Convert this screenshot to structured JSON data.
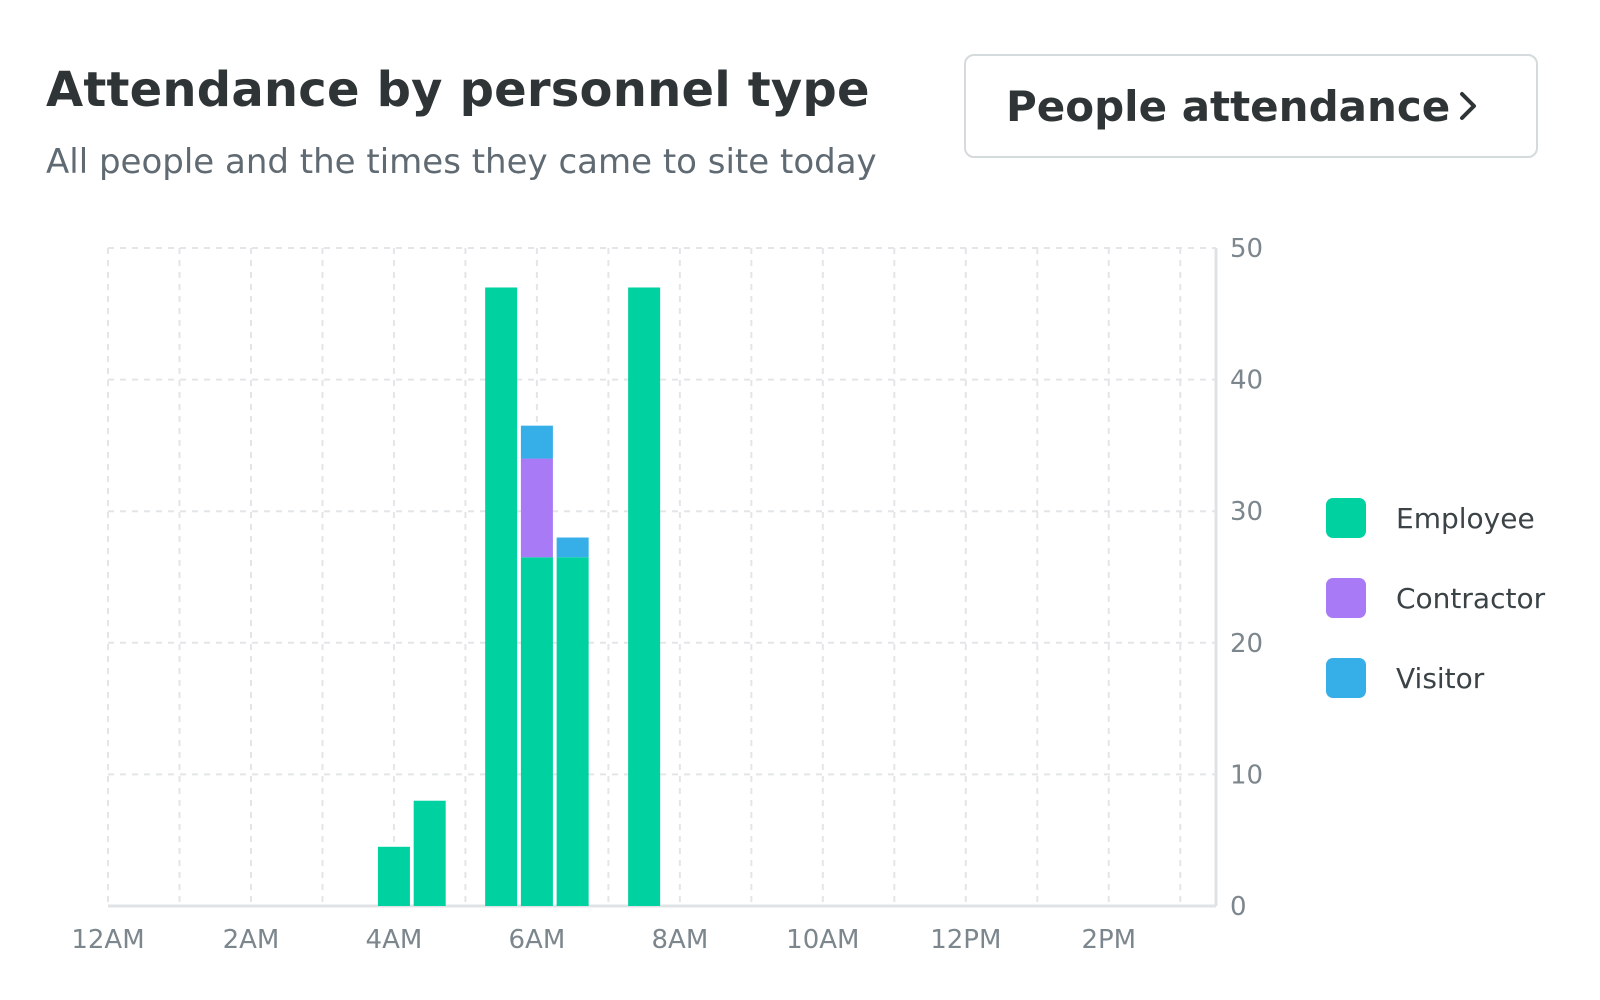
{
  "header": {
    "title": "Attendance by personnel type",
    "subtitle": "All people and the times they came to site today"
  },
  "nav_button": {
    "label": "People attendance",
    "icon": "chevron-right-icon"
  },
  "colors": {
    "employee": "#00d1a0",
    "contractor": "#a87af5",
    "visitor": "#36afe8",
    "grid": "#e3e6e8",
    "axis": "#dfe3e5"
  },
  "chart_data": {
    "type": "bar",
    "stacked": true,
    "title": "Attendance by personnel type",
    "subtitle": "All people and the times they came to site today",
    "xlabel": "",
    "ylabel": "",
    "ylim": [
      0,
      50
    ],
    "y_ticks": [
      0,
      10,
      20,
      30,
      40,
      50
    ],
    "y_axis_position": "right",
    "x_range_hours": [
      0,
      15.5
    ],
    "x_ticks": [
      {
        "hour": 0,
        "label": "12AM"
      },
      {
        "hour": 2,
        "label": "2AM"
      },
      {
        "hour": 4,
        "label": "4AM"
      },
      {
        "hour": 6,
        "label": "6AM"
      },
      {
        "hour": 8,
        "label": "8AM"
      },
      {
        "hour": 10,
        "label": "10AM"
      },
      {
        "hour": 12,
        "label": "12PM"
      },
      {
        "hour": 14,
        "label": "2PM"
      }
    ],
    "bar_hours": [
      4.0,
      4.5,
      5.5,
      6.0,
      6.5,
      7.5
    ],
    "series": [
      {
        "name": "Employee",
        "color": "#00d1a0",
        "values": [
          4.5,
          8,
          47,
          26.5,
          26.5,
          47
        ]
      },
      {
        "name": "Contractor",
        "color": "#a87af5",
        "values": [
          0,
          0,
          0,
          7.5,
          0,
          0
        ]
      },
      {
        "name": "Visitor",
        "color": "#36afe8",
        "values": [
          0,
          0,
          0,
          2.5,
          1.5,
          0
        ]
      }
    ],
    "grid": true,
    "legend_position": "right"
  }
}
